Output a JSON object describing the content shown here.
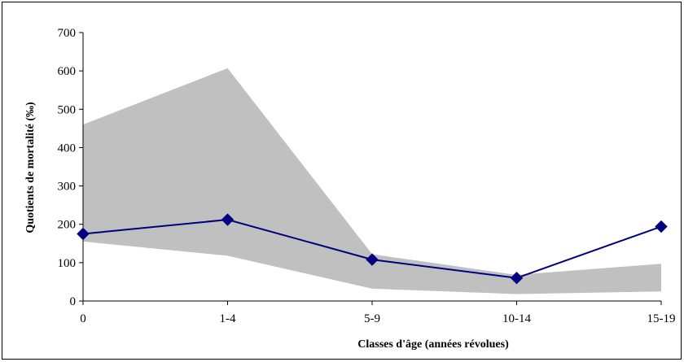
{
  "chart_data": {
    "type": "line",
    "title": "",
    "xlabel": "Classes d'âge (années révolues)",
    "ylabel": "Quotients de mortalité (‰)",
    "ylim": [
      0,
      700
    ],
    "yticks": [
      0,
      100,
      200,
      300,
      400,
      500,
      600,
      700
    ],
    "categories": [
      "0",
      "1-4",
      "5-9",
      "10-14",
      "15-19"
    ],
    "series": [
      {
        "values": [
          175,
          212,
          108,
          60,
          194
        ],
        "color": "#000080",
        "marker": "diamond"
      }
    ],
    "band": {
      "upper": [
        460,
        607,
        122,
        68,
        97
      ],
      "lower": [
        155,
        118,
        32,
        18,
        25
      ],
      "color": "#c0c0c0"
    },
    "grid": false,
    "legend": "none"
  }
}
